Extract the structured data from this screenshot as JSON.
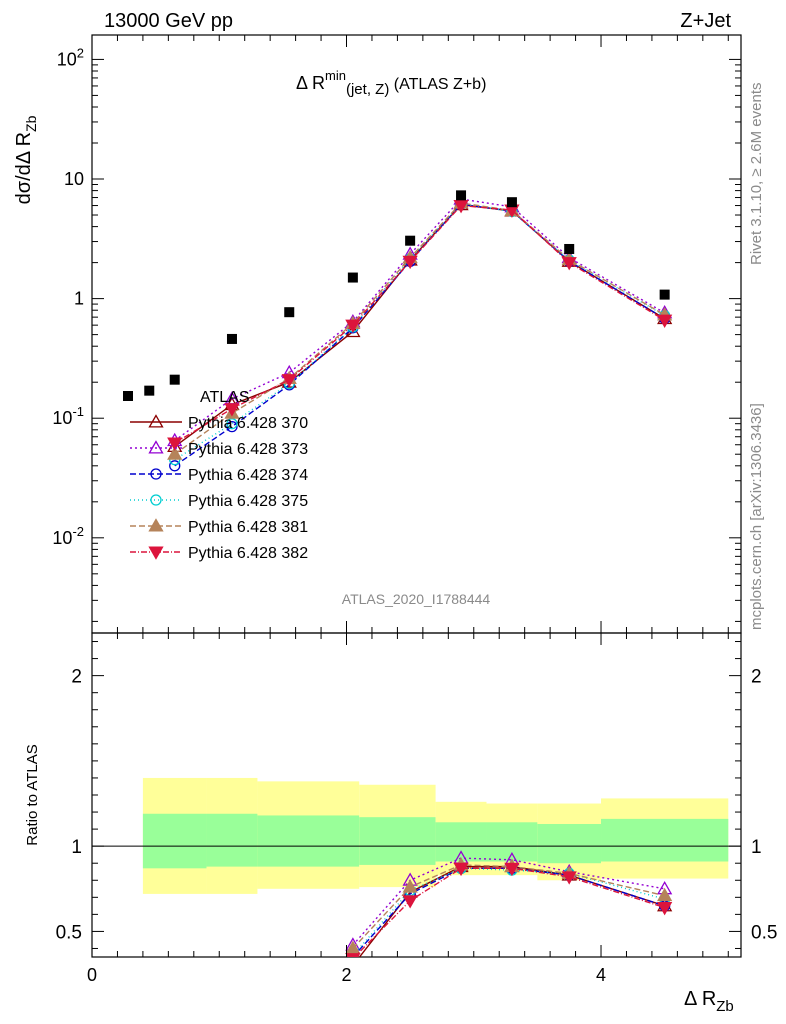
{
  "header": {
    "energy": "13000 GeV pp",
    "process": "Z+Jet"
  },
  "side_text": {
    "rivet": "Rivet 3.1.10, ≥ 2.6M events",
    "mcplots": "mcplots.cern.ch [arXiv:1306.3436]"
  },
  "chart_data": {
    "type": "line",
    "title": "Δ R^min(jet, Z) (ATLAS Z+b)",
    "watermark": "ATLAS_2020_I1788444",
    "xlabel": "Δ R_Zb",
    "ylabel": "dσ/dΔ R_Zb",
    "ratio_ylabel": "Ratio to ATLAS",
    "xlim": [
      0,
      5.1
    ],
    "ylim": [
      0.0016,
      160
    ],
    "yscale": "log",
    "ratio_ylim": [
      0.35,
      2.25
    ],
    "x_ticks": [
      "0",
      "2",
      "4"
    ],
    "y_ticks": [
      "10^-2",
      "10^-1",
      "1",
      "10",
      "10^2"
    ],
    "ratio_ticks": [
      "0.5",
      "1",
      "2"
    ],
    "legend_position": "left",
    "data": {
      "name": "ATLAS",
      "x": [
        0.65,
        1.1,
        1.55,
        2.05,
        2.5,
        2.9,
        3.3,
        3.75,
        4.5
      ],
      "y": [
        0.21,
        0.46,
        0.77,
        1.5,
        3.05,
        7.3,
        6.4,
        2.6,
        1.08
      ],
      "x_first": 0.45,
      "y_first": 0.17
    },
    "bands": {
      "bins": [
        [
          0.4,
          0.9
        ],
        [
          0.9,
          1.3
        ],
        [
          1.3,
          2.1
        ],
        [
          2.1,
          2.7
        ],
        [
          2.7,
          3.1
        ],
        [
          3.1,
          3.5
        ],
        [
          3.5,
          4.0
        ],
        [
          4.0,
          5.0
        ]
      ],
      "yellow_lo": [
        0.72,
        0.72,
        0.75,
        0.76,
        0.83,
        0.83,
        0.8,
        0.81
      ],
      "yellow_hi": [
        1.4,
        1.4,
        1.38,
        1.36,
        1.26,
        1.25,
        1.25,
        1.28
      ],
      "green_lo": [
        0.87,
        0.88,
        0.88,
        0.89,
        0.91,
        0.91,
        0.9,
        0.91
      ],
      "green_hi": [
        1.19,
        1.19,
        1.18,
        1.17,
        1.14,
        1.14,
        1.13,
        1.16
      ]
    },
    "series": [
      {
        "name": "Pythia 6.428 370",
        "color": "#8b0000",
        "dash": "",
        "marker": "triangle-open",
        "x": [
          0.65,
          1.1,
          1.55,
          2.05,
          2.5,
          2.9,
          3.3,
          3.75,
          4.5
        ],
        "y": [
          0.058,
          0.13,
          0.2,
          0.53,
          2.1,
          6.1,
          5.4,
          2.05,
          0.68
        ],
        "ratio_x": [
          2.05,
          2.5,
          2.9,
          3.3,
          3.75,
          4.5
        ],
        "ratio_y": [
          0.3,
          0.73,
          0.88,
          0.88,
          0.83,
          0.65
        ]
      },
      {
        "name": "Pythia 6.428 373",
        "color": "#9400d3",
        "dash": "2,3",
        "marker": "triangle-open",
        "x": [
          0.65,
          1.1,
          1.55,
          2.05,
          2.5,
          2.9,
          3.3,
          3.75,
          4.5
        ],
        "y": [
          0.065,
          0.145,
          0.24,
          0.64,
          2.35,
          6.8,
          5.85,
          2.2,
          0.76
        ],
        "ratio_x": [
          2.05,
          2.5,
          2.9,
          3.3,
          3.75,
          4.5
        ],
        "ratio_y": [
          0.42,
          0.8,
          0.93,
          0.92,
          0.85,
          0.75
        ]
      },
      {
        "name": "Pythia 6.428 374",
        "color": "#0000cd",
        "dash": "6,3",
        "marker": "circle-open",
        "x": [
          0.65,
          1.1,
          1.55,
          2.05,
          2.5,
          2.9,
          3.3,
          3.75,
          4.5
        ],
        "y": [
          0.04,
          0.085,
          0.19,
          0.57,
          2.05,
          6.15,
          5.4,
          2.05,
          0.68
        ],
        "ratio_x": [
          2.05,
          2.5,
          2.9,
          3.3,
          3.75,
          4.5
        ],
        "ratio_y": [
          0.35,
          0.72,
          0.87,
          0.87,
          0.83,
          0.65
        ]
      },
      {
        "name": "Pythia 6.428 375",
        "color": "#00ced1",
        "dash": "1,3",
        "marker": "circle-open",
        "x": [
          0.65,
          1.1,
          1.55,
          2.05,
          2.5,
          2.9,
          3.3,
          3.75,
          4.5
        ],
        "y": [
          0.045,
          0.09,
          0.195,
          0.58,
          2.15,
          6.2,
          5.35,
          2.1,
          0.72
        ],
        "ratio_x": [
          2.05,
          2.5,
          2.9,
          3.3,
          3.75,
          4.5
        ],
        "ratio_y": [
          0.36,
          0.74,
          0.87,
          0.86,
          0.84,
          0.69
        ]
      },
      {
        "name": "Pythia 6.428 381",
        "color": "#b5835a",
        "dash": "6,3",
        "marker": "triangle-filled",
        "x": [
          0.65,
          1.1,
          1.55,
          2.05,
          2.5,
          2.9,
          3.3,
          3.75,
          4.5
        ],
        "y": [
          0.05,
          0.11,
          0.215,
          0.62,
          2.2,
          6.3,
          5.45,
          2.12,
          0.73
        ],
        "ratio_x": [
          2.05,
          2.5,
          2.9,
          3.3,
          3.75,
          4.5
        ],
        "ratio_y": [
          0.4,
          0.76,
          0.89,
          0.88,
          0.84,
          0.71
        ]
      },
      {
        "name": "Pythia 6.428 382",
        "color": "#dc143c",
        "dash": "6,2,1,2",
        "marker": "triangle-down-filled",
        "x": [
          0.65,
          1.1,
          1.55,
          2.05,
          2.5,
          2.9,
          3.3,
          3.75,
          4.5
        ],
        "y": [
          0.062,
          0.12,
          0.21,
          0.6,
          2.05,
          6.0,
          5.5,
          2.0,
          0.66
        ],
        "ratio_x": [
          2.05,
          2.5,
          2.9,
          3.3,
          3.75,
          4.5
        ],
        "ratio_y": [
          0.34,
          0.68,
          0.87,
          0.87,
          0.82,
          0.64
        ]
      }
    ]
  }
}
